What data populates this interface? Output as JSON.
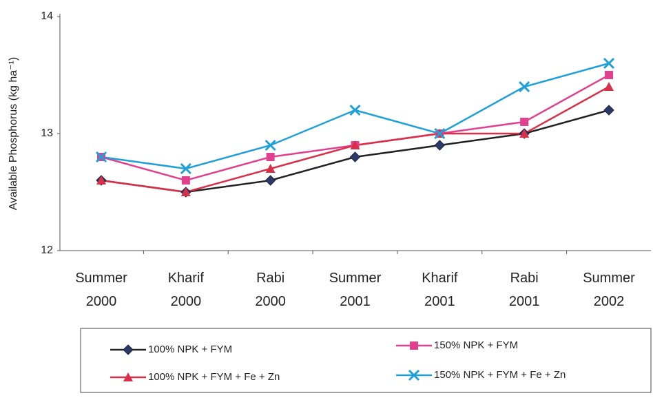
{
  "chart_data": {
    "type": "line",
    "y_label": "Available Phosphorus (kg ha⁻¹)",
    "categories": [
      "Summer 2000",
      "Kharif 2000",
      "Rabi 2000",
      "Summer 2001",
      "Kharif 2001",
      "Rabi 2001",
      "Summer 2002"
    ],
    "series": [
      {
        "name": "100% NPK + FYM",
        "color": "#2b3a67",
        "marker": "diamond",
        "values": [
          12.6,
          12.5,
          12.6,
          12.8,
          12.9,
          13.0,
          13.2
        ]
      },
      {
        "name": "150% NPK + FYM",
        "color": "#e0408e",
        "marker": "square",
        "values": [
          12.8,
          12.6,
          12.8,
          12.9,
          13.0,
          13.1,
          13.5
        ]
      },
      {
        "name": "100% NPK + FYM + Fe + Zn",
        "color": "#d9304a",
        "marker": "triangle",
        "values": [
          12.6,
          12.5,
          12.7,
          12.9,
          13.0,
          13.0,
          13.4
        ]
      },
      {
        "name": "150% NPK + FYM + Fe + Zn",
        "color": "#1fa0d8",
        "marker": "x",
        "values": [
          12.8,
          12.7,
          12.9,
          13.2,
          13.0,
          13.4,
          13.6
        ]
      }
    ],
    "ylim": [
      12,
      14
    ],
    "yticks": [
      12,
      13,
      14
    ],
    "grid": false
  }
}
